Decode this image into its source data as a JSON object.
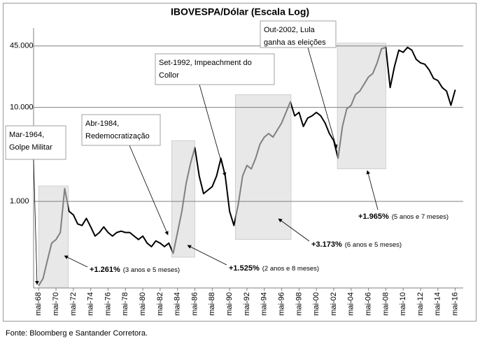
{
  "chart_data": {
    "type": "line",
    "title": "IBOVESPA/Dólar (Escala Log)",
    "source": "Fonte: Bloomberg e Santander Corretora.",
    "log_y": true,
    "grid": true,
    "color": "#000000",
    "highlight_line_color": "#808080",
    "highlight_fill": "#e8e8e8",
    "xlim": [
      "1967-10",
      "2017-04"
    ],
    "ylim": [
      120,
      70000
    ],
    "yticks": [
      {
        "value": 1000,
        "label": "1.000"
      },
      {
        "value": 10000,
        "label": "10.000"
      },
      {
        "value": 45000,
        "label": "45.000"
      }
    ],
    "xticks": [
      {
        "value": "1968-05",
        "label": "mai-68"
      },
      {
        "value": "1970-05",
        "label": "mai-70"
      },
      {
        "value": "1972-05",
        "label": "mai-72"
      },
      {
        "value": "1974-05",
        "label": "mai-74"
      },
      {
        "value": "1976-05",
        "label": "mai-76"
      },
      {
        "value": "1978-05",
        "label": "mai-78"
      },
      {
        "value": "1980-05",
        "label": "mai-80"
      },
      {
        "value": "1982-05",
        "label": "mai-82"
      },
      {
        "value": "1984-05",
        "label": "mai-84"
      },
      {
        "value": "1986-05",
        "label": "mai-86"
      },
      {
        "value": "1988-05",
        "label": "mai-88"
      },
      {
        "value": "1990-05",
        "label": "mai-90"
      },
      {
        "value": "1992-05",
        "label": "mai-92"
      },
      {
        "value": "1994-05",
        "label": "mai-94"
      },
      {
        "value": "1996-05",
        "label": "mai-96"
      },
      {
        "value": "1998-05",
        "label": "mai-98"
      },
      {
        "value": "2000-05",
        "label": "mai-00"
      },
      {
        "value": "2002-05",
        "label": "mai-02"
      },
      {
        "value": "2004-05",
        "label": "mai-04"
      },
      {
        "value": "2006-05",
        "label": "mai-06"
      },
      {
        "value": "2008-05",
        "label": "mai-08"
      },
      {
        "value": "2010-05",
        "label": "mai-10"
      },
      {
        "value": "2012-05",
        "label": "mai-12"
      },
      {
        "value": "2014-05",
        "label": "mai-14"
      },
      {
        "value": "2016-05",
        "label": "mai-16"
      }
    ],
    "x": [
      "1968-05",
      "1968-11",
      "1969-05",
      "1969-11",
      "1970-05",
      "1970-11",
      "1971-05",
      "1971-11",
      "1972-05",
      "1972-11",
      "1973-05",
      "1973-11",
      "1974-05",
      "1974-11",
      "1975-05",
      "1975-11",
      "1976-05",
      "1976-11",
      "1977-05",
      "1977-11",
      "1978-05",
      "1978-11",
      "1979-05",
      "1979-11",
      "1980-05",
      "1980-11",
      "1981-05",
      "1981-11",
      "1982-05",
      "1982-11",
      "1983-05",
      "1983-11",
      "1984-05",
      "1984-11",
      "1985-05",
      "1985-11",
      "1986-05",
      "1986-11",
      "1987-05",
      "1987-11",
      "1988-05",
      "1988-11",
      "1989-05",
      "1989-11",
      "1990-05",
      "1990-11",
      "1991-05",
      "1991-11",
      "1992-05",
      "1992-11",
      "1993-05",
      "1993-11",
      "1994-05",
      "1994-11",
      "1995-05",
      "1995-11",
      "1996-05",
      "1996-11",
      "1997-05",
      "1997-11",
      "1998-05",
      "1998-11",
      "1999-05",
      "1999-11",
      "2000-05",
      "2000-11",
      "2001-05",
      "2001-11",
      "2002-05",
      "2002-11",
      "2003-05",
      "2003-11",
      "2004-05",
      "2004-11",
      "2005-05",
      "2005-11",
      "2006-05",
      "2006-11",
      "2007-05",
      "2007-11",
      "2008-05",
      "2008-11",
      "2009-05",
      "2009-11",
      "2010-05",
      "2010-11",
      "2011-05",
      "2011-11",
      "2012-05",
      "2012-11",
      "2013-05",
      "2013-11",
      "2014-05",
      "2014-11",
      "2015-05",
      "2015-11",
      "2016-05"
    ],
    "values": [
      127,
      151,
      234,
      360,
      393,
      467,
      1370,
      785,
      720,
      575,
      555,
      660,
      536,
      428,
      467,
      536,
      467,
      428,
      467,
      483,
      467,
      467,
      428,
      393,
      428,
      360,
      330,
      380,
      360,
      330,
      360,
      280,
      467,
      785,
      1568,
      2547,
      3727,
      1865,
      1210,
      1318,
      1438,
      1865,
      2876,
      1865,
      785,
      555,
      933,
      1865,
      2417,
      2218,
      2876,
      4060,
      4830,
      5270,
      4830,
      5750,
      6840,
      8860,
      11500,
      8130,
      8860,
      6270,
      7710,
      8130,
      8860,
      8130,
      6840,
      5270,
      4430,
      2876,
      6270,
      9660,
      10540,
      13650,
      14890,
      17700,
      21050,
      22960,
      29770,
      42060,
      43550,
      16250,
      27300,
      40640,
      38550,
      43550,
      40640,
      32460,
      29770,
      28760,
      25010,
      20330,
      19310,
      16250,
      14890,
      10540,
      15420
    ],
    "highlights": [
      {
        "start": "1968-05",
        "end": "1971-10",
        "range": [
          120,
          1460
        ],
        "gain": "+1.261%",
        "duration": "(3 anos e 5 meses)"
      },
      {
        "start": "1983-09",
        "end": "1986-05",
        "range": [
          255,
          4430
        ],
        "gain": "+1.525%",
        "duration": "(2 anos e 8 meses)"
      },
      {
        "start": "1991-01",
        "end": "1997-06",
        "range": [
          393,
          13650
        ],
        "gain": "+3.173%",
        "duration": "(6 anos e 5 meses)"
      },
      {
        "start": "2002-10",
        "end": "2008-05",
        "range": [
          2218,
          48300
        ],
        "gain": "+1.965%",
        "duration": "(5 anos e 7 meses)"
      }
    ],
    "annotations": [
      {
        "lines": [
          "Mar-1964,",
          "Golpe Militar"
        ]
      },
      {
        "lines": [
          "Abr-1984,",
          "Redemocratização"
        ]
      },
      {
        "lines": [
          "Set-1992, Impeachment do",
          "Collor"
        ]
      },
      {
        "lines": [
          "Out-2002, Lula",
          "ganha as eleições"
        ]
      }
    ]
  }
}
